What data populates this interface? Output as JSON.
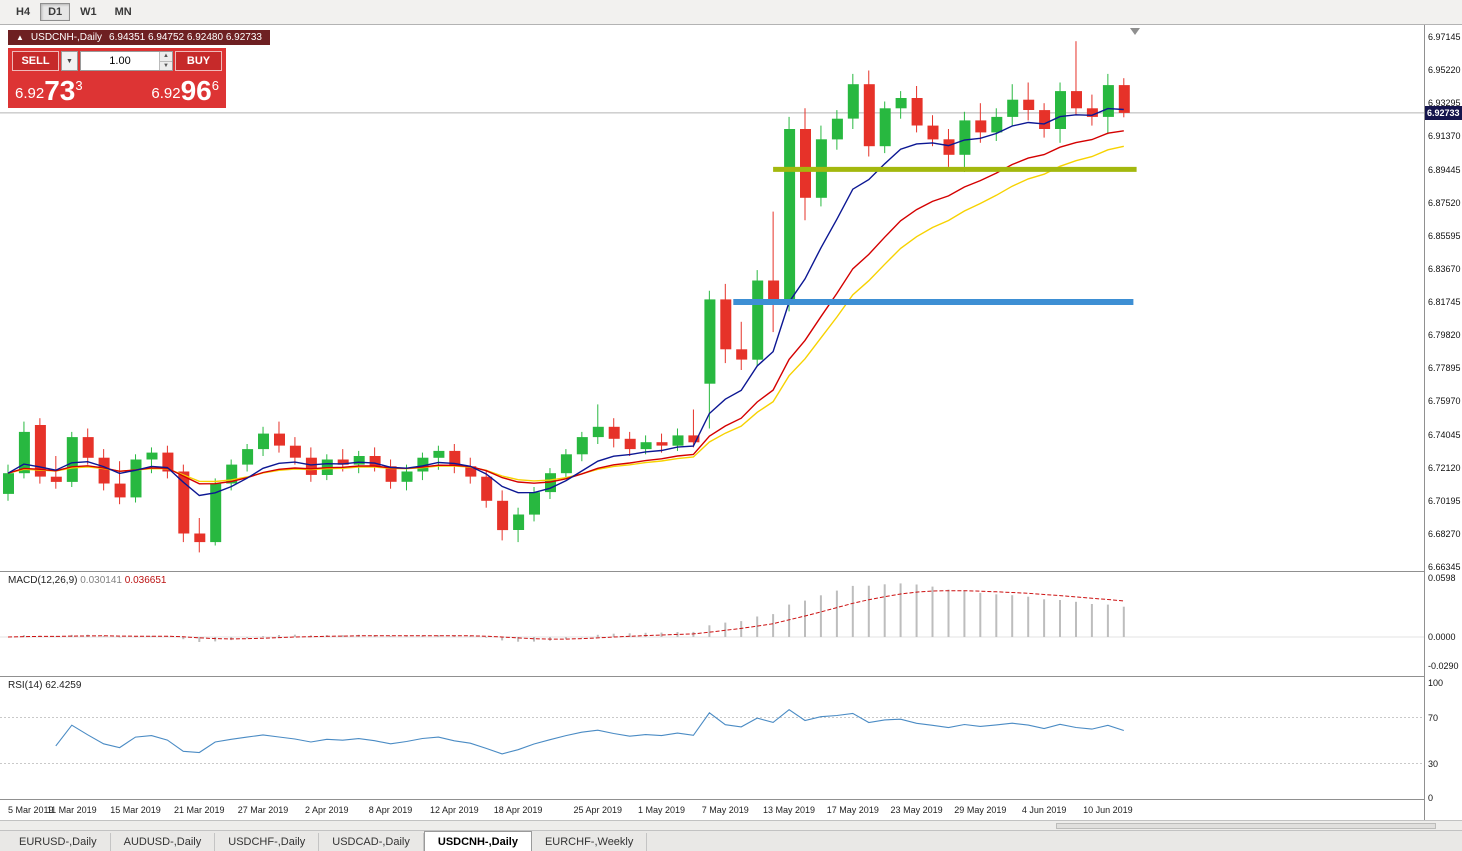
{
  "toolbar": {
    "timeframes": [
      {
        "label": "H4",
        "active": false
      },
      {
        "label": "D1",
        "active": true
      },
      {
        "label": "W1",
        "active": false
      },
      {
        "label": "MN",
        "active": false
      }
    ]
  },
  "symbol_bar": {
    "icon": "▲",
    "title": "USDCNH-,Daily",
    "ohlc_text": "6.94351 6.94752 6.92480 6.92733"
  },
  "trade_panel": {
    "sell_label": "SELL",
    "buy_label": "BUY",
    "volume": "1.00",
    "sell_price": {
      "big": "6.92",
      "pips": "73",
      "sup": "3"
    },
    "buy_price": {
      "big": "6.92",
      "pips": "96",
      "sup": "6"
    }
  },
  "indicators": {
    "macd": {
      "label": "MACD(12,26,9)",
      "value": "0.030141",
      "signal_value": "0.036651",
      "axis_ticks": [
        {
          "label": "0.0598",
          "value": 0.0598
        },
        {
          "label": "0.0000",
          "value": 0
        },
        {
          "label": "-0.0290",
          "value": -0.029
        }
      ]
    },
    "rsi": {
      "label": "RSI(14)",
      "value": "62.4259",
      "axis_ticks": [
        {
          "label": "100",
          "value": 100
        },
        {
          "label": "70",
          "value": 70
        },
        {
          "label": "30",
          "value": 30
        },
        {
          "label": "0",
          "value": 0
        }
      ]
    }
  },
  "price_axis": {
    "labels": [
      "6.97145",
      "6.95220",
      "6.93295",
      "6.91370",
      "6.89445",
      "6.87520",
      "6.85595",
      "6.83670",
      "6.81745",
      "6.79820",
      "6.77895",
      "6.75970",
      "6.74045",
      "6.72120",
      "6.70195",
      "6.68270",
      "6.66345"
    ]
  },
  "current_price_label": "6.92733",
  "date_axis": [
    {
      "label": "5 Mar 2019",
      "index": 0
    },
    {
      "label": "11 Mar 2019",
      "index": 4
    },
    {
      "label": "15 Mar 2019",
      "index": 8
    },
    {
      "label": "21 Mar 2019",
      "index": 12
    },
    {
      "label": "27 Mar 2019",
      "index": 16
    },
    {
      "label": "2 Apr 2019",
      "index": 20
    },
    {
      "label": "8 Apr 2019",
      "index": 24
    },
    {
      "label": "12 Apr 2019",
      "index": 28
    },
    {
      "label": "18 Apr 2019",
      "index": 32
    },
    {
      "label": "25 Apr 2019",
      "index": 37
    },
    {
      "label": "1 May 2019",
      "index": 41
    },
    {
      "label": "7 May 2019",
      "index": 45
    },
    {
      "label": "13 May 2019",
      "index": 49
    },
    {
      "label": "17 May 2019",
      "index": 53
    },
    {
      "label": "23 May 2019",
      "index": 57
    },
    {
      "label": "29 May 2019",
      "index": 61
    },
    {
      "label": "4 Jun 2019",
      "index": 65
    },
    {
      "label": "10 Jun 2019",
      "index": 69
    }
  ],
  "bottom_tabs": [
    {
      "label": "EURUSD-,Daily",
      "active": false
    },
    {
      "label": "AUDUSD-,Daily",
      "active": false
    },
    {
      "label": "USDCHF-,Daily",
      "active": false
    },
    {
      "label": "USDCAD-,Daily",
      "active": false
    },
    {
      "label": "USDCNH-,Daily",
      "active": true
    },
    {
      "label": "EURCHF-,Weekly",
      "active": false
    }
  ],
  "colors": {
    "trade_panel_bg": "#dd3434",
    "trade_button_bg": "#c62a2a",
    "symbol_bar_bg": "#6e2022",
    "badge_bg": "#15154d",
    "current_price_line": "#b4b4b4"
  },
  "chart_data": {
    "type": "candlestick",
    "symbol": "USDCNH",
    "period": "Daily",
    "price_range_visible": [
      6.66345,
      6.97145
    ],
    "current_price": 6.92733,
    "up_color": "#28b840",
    "down_color": "#e63229",
    "ohlc": [
      [
        6.706,
        6.723,
        6.702,
        6.718
      ],
      [
        6.718,
        6.748,
        6.715,
        6.742
      ],
      [
        6.746,
        6.75,
        6.712,
        6.716
      ],
      [
        6.716,
        6.728,
        6.709,
        6.713
      ],
      [
        6.713,
        6.742,
        6.71,
        6.739
      ],
      [
        6.739,
        6.744,
        6.723,
        6.727
      ],
      [
        6.727,
        6.732,
        6.708,
        6.712
      ],
      [
        6.712,
        6.725,
        6.7,
        6.704
      ],
      [
        6.704,
        6.729,
        6.701,
        6.726
      ],
      [
        6.726,
        6.733,
        6.718,
        6.73
      ],
      [
        6.73,
        6.734,
        6.715,
        6.719
      ],
      [
        6.719,
        6.723,
        6.678,
        6.683
      ],
      [
        6.683,
        6.692,
        6.672,
        6.678
      ],
      [
        6.678,
        6.715,
        6.676,
        6.712
      ],
      [
        6.712,
        6.726,
        6.708,
        6.723
      ],
      [
        6.723,
        6.735,
        6.719,
        6.732
      ],
      [
        6.732,
        6.745,
        6.728,
        6.741
      ],
      [
        6.741,
        6.748,
        6.73,
        6.734
      ],
      [
        6.734,
        6.739,
        6.723,
        6.727
      ],
      [
        6.727,
        6.733,
        6.713,
        6.717
      ],
      [
        6.717,
        6.729,
        6.714,
        6.726
      ],
      [
        6.726,
        6.732,
        6.719,
        6.723
      ],
      [
        6.723,
        6.731,
        6.718,
        6.728
      ],
      [
        6.728,
        6.733,
        6.719,
        6.722
      ],
      [
        6.722,
        6.726,
        6.709,
        6.713
      ],
      [
        6.713,
        6.723,
        6.708,
        6.719
      ],
      [
        6.719,
        6.73,
        6.714,
        6.727
      ],
      [
        6.727,
        6.734,
        6.72,
        6.731
      ],
      [
        6.731,
        6.735,
        6.718,
        6.722
      ],
      [
        6.722,
        6.727,
        6.712,
        6.716
      ],
      [
        6.716,
        6.72,
        6.698,
        6.702
      ],
      [
        6.702,
        6.708,
        6.679,
        6.685
      ],
      [
        6.685,
        6.698,
        6.678,
        6.694
      ],
      [
        6.694,
        6.71,
        6.69,
        6.707
      ],
      [
        6.707,
        6.721,
        6.703,
        6.718
      ],
      [
        6.718,
        6.732,
        6.715,
        6.729
      ],
      [
        6.729,
        6.742,
        6.725,
        6.739
      ],
      [
        6.739,
        6.758,
        6.735,
        6.745
      ],
      [
        6.745,
        6.75,
        6.733,
        6.738
      ],
      [
        6.738,
        6.742,
        6.728,
        6.732
      ],
      [
        6.732,
        6.74,
        6.729,
        6.736
      ],
      [
        6.736,
        6.741,
        6.73,
        6.734
      ],
      [
        6.734,
        6.744,
        6.731,
        6.74
      ],
      [
        6.74,
        6.755,
        6.733,
        6.736
      ],
      [
        6.77,
        6.824,
        6.744,
        6.819
      ],
      [
        6.819,
        6.828,
        6.782,
        6.79
      ],
      [
        6.79,
        6.806,
        6.778,
        6.784
      ],
      [
        6.784,
        6.836,
        6.78,
        6.83
      ],
      [
        6.83,
        6.87,
        6.8,
        6.818
      ],
      [
        6.818,
        6.925,
        6.812,
        6.918
      ],
      [
        6.918,
        6.93,
        6.865,
        6.878
      ],
      [
        6.878,
        6.92,
        6.873,
        6.912
      ],
      [
        6.912,
        6.929,
        6.906,
        6.924
      ],
      [
        6.924,
        6.95,
        6.918,
        6.944
      ],
      [
        6.944,
        6.952,
        6.902,
        6.908
      ],
      [
        6.908,
        6.934,
        6.904,
        6.93
      ],
      [
        6.93,
        6.94,
        6.924,
        6.936
      ],
      [
        6.936,
        6.943,
        6.916,
        6.92
      ],
      [
        6.92,
        6.926,
        6.908,
        6.912
      ],
      [
        6.912,
        6.918,
        6.896,
        6.903
      ],
      [
        6.903,
        6.928,
        6.893,
        6.923
      ],
      [
        6.923,
        6.933,
        6.91,
        6.916
      ],
      [
        6.916,
        6.93,
        6.911,
        6.925
      ],
      [
        6.925,
        6.944,
        6.92,
        6.935
      ],
      [
        6.935,
        6.945,
        6.923,
        6.929
      ],
      [
        6.929,
        6.933,
        6.913,
        6.918
      ],
      [
        6.918,
        6.945,
        6.91,
        6.94
      ],
      [
        6.94,
        6.969,
        6.926,
        6.93
      ],
      [
        6.93,
        6.938,
        6.92,
        6.925
      ],
      [
        6.925,
        6.95,
        6.915,
        6.9435
      ],
      [
        6.94351,
        6.94752,
        6.9248,
        6.92733
      ]
    ],
    "moving_averages": [
      {
        "name": "fast",
        "period": 8,
        "method": "ema",
        "color": "#0c1793"
      },
      {
        "name": "medium",
        "period": 16,
        "method": "ema",
        "color": "#d40000"
      },
      {
        "name": "slow",
        "period": 20,
        "method": "ema",
        "color": "#f7d200"
      }
    ],
    "trend_lines": [
      {
        "color": "#a3b80e",
        "price": 6.8945,
        "from_index": 48,
        "to_index": 70.8,
        "width": 5
      },
      {
        "color": "#3d8fd4",
        "price": 6.8175,
        "from_index": 45.5,
        "to_index": 70.6,
        "width": 6
      }
    ],
    "indicators": {
      "macd": {
        "fast": 12,
        "slow": 26,
        "signal_period": 9,
        "histogram_color": "#bdbdbd",
        "signal_color": "#cc1111",
        "range": [
          -0.0405,
          0.0659
        ]
      },
      "rsi": {
        "period": 14,
        "color": "#4a8bc4",
        "levels": [
          70,
          30
        ],
        "range": [
          0,
          100
        ]
      }
    }
  }
}
